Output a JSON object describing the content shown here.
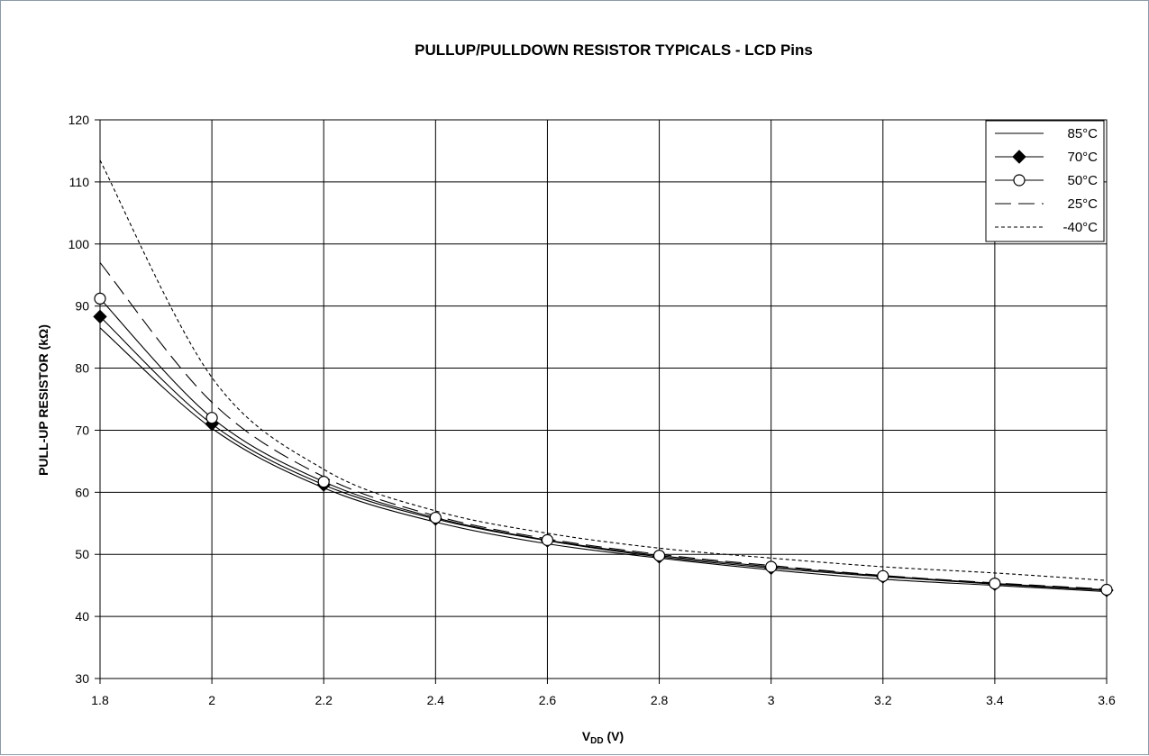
{
  "chart_data": {
    "type": "line",
    "title": "PULLUP/PULLDOWN RESISTOR TYPICALS - LCD Pins",
    "xlabel_main": "V",
    "xlabel_sub": "DD",
    "xlabel_unit": " (V)",
    "ylabel": "PULL-UP RESISTOR (kΩ)",
    "xlim": [
      1.8,
      3.6
    ],
    "ylim": [
      30,
      120
    ],
    "x_ticks": [
      "1.8",
      "2",
      "2.2",
      "2.4",
      "2.6",
      "2.8",
      "3",
      "3.2",
      "3.4",
      "3.6"
    ],
    "y_ticks": [
      "30",
      "40",
      "50",
      "60",
      "70",
      "80",
      "90",
      "100",
      "110",
      "120"
    ],
    "grid": true,
    "legend_position": "top-right",
    "x": [
      1.8,
      2.0,
      2.2,
      2.4,
      2.6,
      2.8,
      3.0,
      3.2,
      3.4,
      3.6
    ],
    "series": [
      {
        "name": "85°C",
        "style": "solid",
        "marker": "none",
        "values": [
          86.5,
          70.3,
          60.7,
          55.2,
          51.7,
          49.4,
          47.5,
          46.0,
          45.0,
          44.0
        ]
      },
      {
        "name": "70°C",
        "style": "solid",
        "marker": "diamond",
        "values": [
          88.3,
          71.0,
          61.2,
          55.7,
          52.2,
          49.6,
          47.8,
          46.4,
          45.2,
          44.2
        ]
      },
      {
        "name": "50°C",
        "style": "solid",
        "marker": "circle",
        "values": [
          91.2,
          72.0,
          61.7,
          55.9,
          52.3,
          49.8,
          48.0,
          46.5,
          45.3,
          44.3
        ]
      },
      {
        "name": "25°C",
        "style": "longdash",
        "marker": "none",
        "values": [
          97.0,
          74.5,
          62.5,
          56.2,
          52.5,
          50.0,
          48.2,
          46.6,
          45.4,
          44.4
        ]
      },
      {
        "name": "-40°C",
        "style": "shortdash",
        "marker": "none",
        "values": [
          113.5,
          78.5,
          63.7,
          57.0,
          53.4,
          51.0,
          49.4,
          48.0,
          47.0,
          45.8
        ]
      }
    ]
  }
}
